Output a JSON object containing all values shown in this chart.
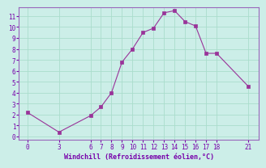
{
  "x": [
    0,
    3,
    6,
    7,
    8,
    9,
    10,
    11,
    12,
    13,
    14,
    15,
    16,
    17,
    18,
    21
  ],
  "y": [
    2.2,
    0.4,
    1.9,
    2.7,
    4.0,
    6.8,
    8.0,
    9.5,
    9.9,
    11.3,
    11.5,
    10.5,
    10.1,
    7.6,
    7.6,
    4.6
  ],
  "line_color": "#993399",
  "marker": "s",
  "marker_size": 2.5,
  "bg_color": "#cceee8",
  "grid_color": "#aaddcc",
  "xlabel": "Windchill (Refroidissement éolien,°C)",
  "xlabel_color": "#7700aa",
  "tick_color": "#7700aa",
  "spine_color": "#9966bb",
  "ylim": [
    -0.3,
    11.8
  ],
  "xlim": [
    -0.8,
    22
  ],
  "yticks": [
    0,
    1,
    2,
    3,
    4,
    5,
    6,
    7,
    8,
    9,
    10,
    11
  ],
  "xticks": [
    0,
    3,
    6,
    7,
    8,
    9,
    10,
    11,
    12,
    13,
    14,
    15,
    16,
    17,
    18,
    21
  ]
}
